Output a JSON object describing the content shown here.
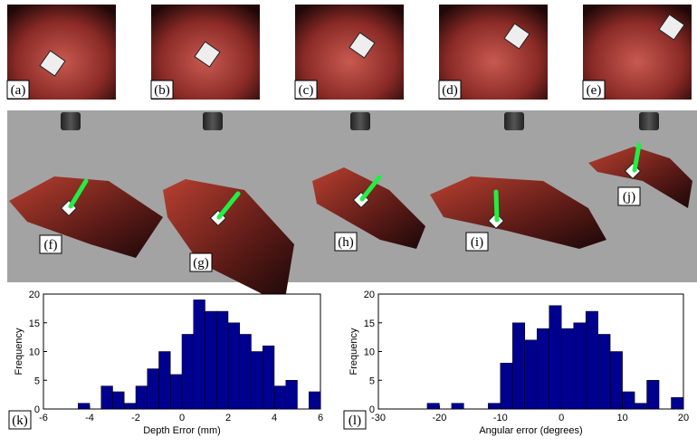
{
  "photos": {
    "labels": [
      "(a)",
      "(b)",
      "(c)",
      "(d)",
      "(e)"
    ]
  },
  "scene": {
    "labels": [
      "(f)",
      "(g)",
      "(h)",
      "(i)",
      "(j)"
    ]
  },
  "chart_data": [
    {
      "type": "histogram",
      "panel_label": "(k)",
      "x_label": "Depth Error (mm)",
      "y_label": "Frequency",
      "bins": [
        -4.5,
        -4,
        -3.5,
        -3,
        -2.5,
        -2,
        -1.5,
        -1,
        -0.5,
        0,
        0.5,
        1,
        1.5,
        2,
        2.5,
        3,
        3.5,
        4,
        4.5,
        5,
        5.5,
        6
      ],
      "values": [
        1,
        0,
        4,
        3,
        1,
        4,
        7,
        10,
        6,
        13,
        19,
        17,
        17,
        15,
        13,
        10,
        11,
        4,
        5,
        0,
        3
      ],
      "color": "#00008f",
      "xlim": [
        -6,
        6
      ],
      "xticks": [
        -6,
        -4,
        -2,
        0,
        2,
        4,
        6
      ],
      "ylim": [
        0,
        20
      ],
      "yticks": [
        0,
        5,
        10,
        15,
        20
      ]
    },
    {
      "type": "histogram",
      "panel_label": "(l)",
      "x_label": "Angular error (degrees)",
      "y_label": "Frequency",
      "bins": [
        -22,
        -20,
        -18,
        -16,
        -14,
        -12,
        -10,
        -8,
        -6,
        -4,
        -2,
        0,
        2,
        4,
        6,
        8,
        10,
        12,
        14,
        16,
        18,
        20
      ],
      "values": [
        1,
        0,
        1,
        0,
        0,
        1,
        8,
        15,
        12,
        14,
        18,
        14,
        15,
        17,
        13,
        10,
        3,
        1,
        5,
        0,
        2
      ],
      "color": "#00008f",
      "xlim": [
        -30,
        20
      ],
      "xticks": [
        -30,
        -20,
        -10,
        0,
        10,
        20
      ],
      "ylim": [
        0,
        20
      ],
      "yticks": [
        0,
        5,
        10,
        15,
        20
      ]
    }
  ]
}
